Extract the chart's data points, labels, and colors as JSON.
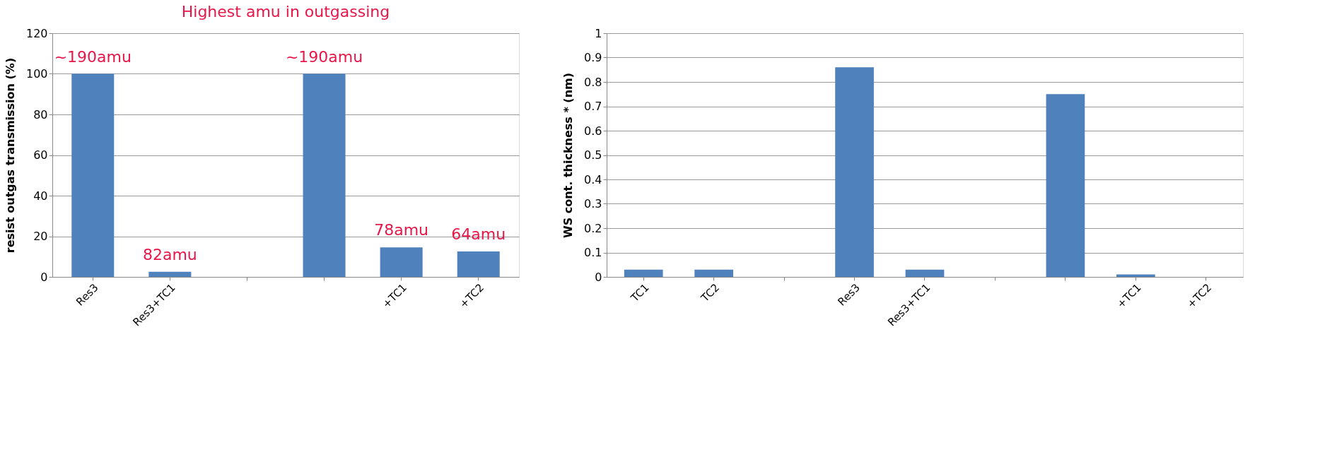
{
  "chart_data": [
    {
      "type": "bar",
      "title": "Highest amu in outgassing",
      "ylabel": "resist outgas transmission (%)",
      "categories": [
        "Res3",
        "Res3+TC1",
        null,
        null,
        "+TC1",
        "+TC2"
      ],
      "values": [
        100,
        2.5,
        null,
        100,
        14.5,
        12.5
      ],
      "color": "#4f81bd",
      "ylim": [
        0,
        120
      ],
      "yticks": [
        0,
        20,
        40,
        60,
        80,
        100,
        120
      ],
      "grid": "y",
      "annotations": [
        {
          "text": "~190amu",
          "x": "Res3",
          "y": 100
        },
        {
          "text": "82amu",
          "x": "Res3+TC1",
          "y": 2.5
        },
        {
          "text": "~190amu",
          "y": 100
        },
        {
          "text": "78amu",
          "x": "+TC1",
          "y": 14.5
        },
        {
          "text": "64amu",
          "x": "+TC2",
          "y": 12.5
        }
      ]
    },
    {
      "type": "bar",
      "ylabel": "WS cont. thickness  * (nm)",
      "categories": [
        "TC1",
        "TC2",
        null,
        "Res3",
        "Res3+TC1",
        null,
        null,
        "+TC1",
        "+TC2"
      ],
      "values": [
        0.03,
        0.03,
        null,
        0.86,
        0.03,
        null,
        0.75,
        0.01,
        0
      ],
      "color": "#4f81bd",
      "ylim": [
        0,
        1
      ],
      "yticks": [
        {
          "value": 0,
          "label": "0"
        },
        0.1,
        0.2,
        0.3,
        0.4,
        0.5,
        0.6,
        0.7,
        0.8,
        0.9,
        {
          "value": 1,
          "label": "1"
        }
      ],
      "grid": "y"
    }
  ]
}
